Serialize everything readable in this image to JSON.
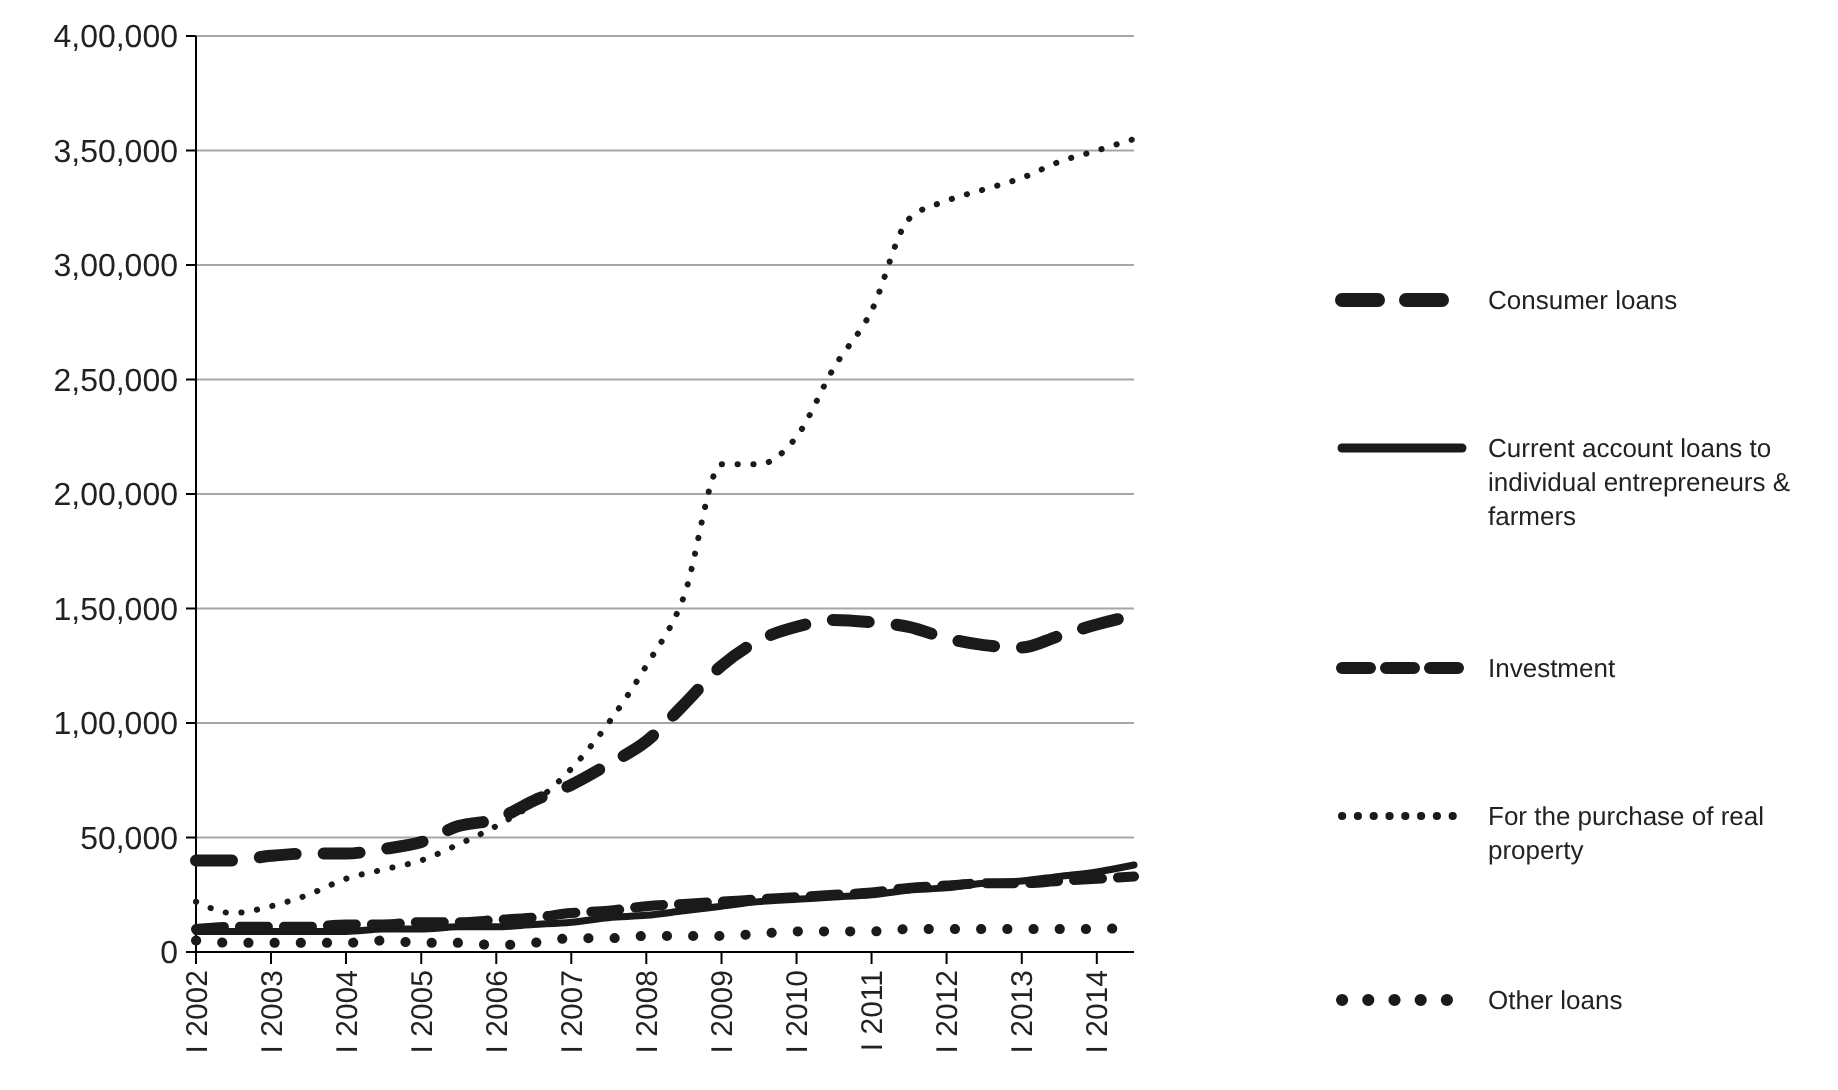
{
  "chart_data": {
    "type": "line",
    "x": [
      "2002-01",
      "2002-07",
      "2003-01",
      "2003-07",
      "2004-01",
      "2004-07",
      "2005-01",
      "2005-07",
      "2006-01",
      "2006-07",
      "2007-01",
      "2007-07",
      "2008-01",
      "2008-07",
      "2009-01",
      "2009-07",
      "2010-01",
      "2010-07",
      "2011-01",
      "2011-07",
      "2012-01",
      "2012-07",
      "2013-01",
      "2013-07",
      "2014-01",
      "2014-07"
    ],
    "xlim": [
      "2002-01",
      "2014-07"
    ],
    "xticks": [
      {
        "value": "2002-01",
        "label": "I 2002"
      },
      {
        "value": "2003-01",
        "label": "I 2003"
      },
      {
        "value": "2004-01",
        "label": "I 2004"
      },
      {
        "value": "2005-01",
        "label": "I 2005"
      },
      {
        "value": "2006-01",
        "label": "I 2006"
      },
      {
        "value": "2007-01",
        "label": "I 2007"
      },
      {
        "value": "2008-01",
        "label": "I 2008"
      },
      {
        "value": "2009-01",
        "label": "I 2009"
      },
      {
        "value": "2010-01",
        "label": "I 2010"
      },
      {
        "value": "2011-01",
        "label": "I 2011"
      },
      {
        "value": "2012-01",
        "label": "I 2012"
      },
      {
        "value": "2013-01",
        "label": "I 2013"
      },
      {
        "value": "2014-01",
        "label": "I 2014"
      }
    ],
    "ylim": [
      0,
      400000
    ],
    "yticks": [
      {
        "value": 0,
        "label": "0"
      },
      {
        "value": 50000,
        "label": "50,000"
      },
      {
        "value": 100000,
        "label": "1,00,000"
      },
      {
        "value": 150000,
        "label": "1,50,000"
      },
      {
        "value": 200000,
        "label": "2,00,000"
      },
      {
        "value": 250000,
        "label": "2,50,000"
      },
      {
        "value": 300000,
        "label": "3,00,000"
      },
      {
        "value": 350000,
        "label": "3,50,000"
      },
      {
        "value": 400000,
        "label": "4,00,000"
      }
    ],
    "grid": "y",
    "legend": "right",
    "series": [
      {
        "name": "Consumer loans",
        "color": "#1a1a1a",
        "line_style": "dashed",
        "values": [
          40000,
          40000,
          42000,
          43000,
          43000,
          45000,
          48000,
          55000,
          58000,
          66000,
          73000,
          82000,
          92000,
          108000,
          125000,
          136000,
          142000,
          145000,
          144000,
          142000,
          137000,
          134000,
          133000,
          138000,
          143000,
          147000
        ]
      },
      {
        "name": "Current account loans to individual entrepreneurs & farmers",
        "color": "#1a1a1a",
        "line_style": "solid",
        "values": [
          9000,
          9000,
          9000,
          9000,
          9000,
          10000,
          10000,
          11000,
          11000,
          12000,
          13000,
          15000,
          16000,
          18000,
          20000,
          22000,
          23000,
          24000,
          25000,
          27000,
          28000,
          30000,
          31000,
          33000,
          35000,
          38000
        ]
      },
      {
        "name": "Investment",
        "color": "#1a1a1a",
        "line_style": "dashed",
        "values": [
          10000,
          11000,
          11000,
          11000,
          12000,
          12000,
          13000,
          13000,
          14000,
          15000,
          17000,
          18000,
          20000,
          21000,
          22000,
          23000,
          24000,
          25000,
          26000,
          28000,
          29000,
          30000,
          30000,
          31000,
          32000,
          33000
        ]
      },
      {
        "name": "For the purchase of real property",
        "color": "#1a1a1a",
        "line_style": "dotted",
        "values": [
          22000,
          17000,
          20000,
          25000,
          32000,
          36000,
          40000,
          47000,
          55000,
          65000,
          80000,
          100000,
          125000,
          155000,
          213000,
          213000,
          225000,
          255000,
          280000,
          320000,
          328000,
          333000,
          338000,
          345000,
          350000,
          355000
        ]
      },
      {
        "name": "Other loans",
        "color": "#1a1a1a",
        "line_style": "dotted",
        "values": [
          5000,
          4000,
          4000,
          4000,
          4000,
          5000,
          4000,
          4000,
          3000,
          4000,
          6000,
          6000,
          7000,
          7000,
          7000,
          8000,
          9000,
          9000,
          9000,
          10000,
          10000,
          10000,
          10000,
          10000,
          10000,
          11000
        ]
      }
    ]
  }
}
